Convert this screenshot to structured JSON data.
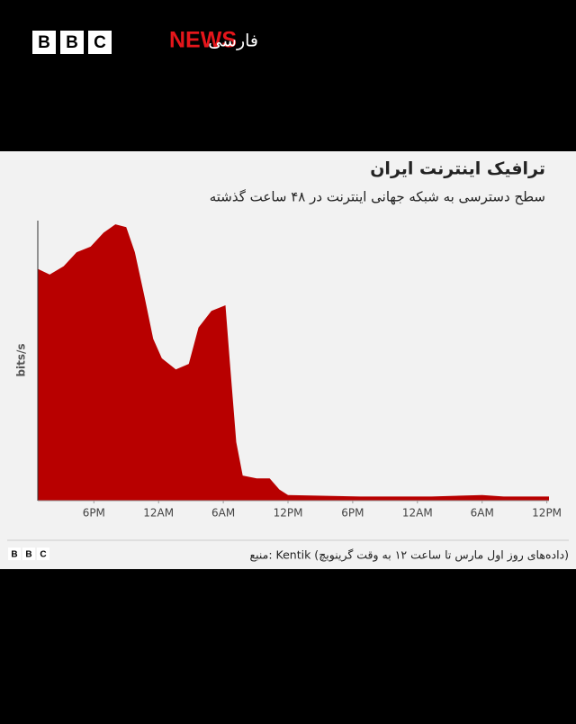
{
  "brand": {
    "letters": [
      "B",
      "B",
      "C"
    ],
    "news": "NEWS",
    "service": "فارسی"
  },
  "chart_data": {
    "type": "area",
    "title": "ترافیک اینترنت ایران",
    "subtitle": "سطح دسترسی به شبکه جهانی اینترنت در ۴۸ ساعت گذشته",
    "y_label": "bits/s",
    "color": "#b80000",
    "x": [
      0.83,
      1.9,
      3.2,
      4.4,
      5.7,
      6.9,
      8,
      9,
      9.8,
      10.7,
      11.5,
      12.3,
      13.6,
      14.8,
      15.7,
      16.9,
      18.2,
      18.6,
      19.2,
      19.8,
      21.1,
      22.3,
      23.2,
      24,
      30.7,
      37.3,
      42,
      44,
      48.2
    ],
    "values": [
      83,
      81,
      84,
      89,
      91,
      96,
      99,
      98,
      89,
      73,
      58,
      51,
      47,
      49,
      62,
      68,
      70,
      50,
      21,
      9,
      8,
      8,
      4,
      2,
      1.5,
      1.5,
      2,
      1.5,
      1.5
    ],
    "xlim": [
      0.8,
      48.2
    ],
    "ylim": [
      0,
      100
    ],
    "xticks": [
      {
        "value": 6,
        "label": "6PM"
      },
      {
        "value": 12,
        "label": "12AM"
      },
      {
        "value": 18,
        "label": "6AM"
      },
      {
        "value": 24,
        "label": "12PM"
      },
      {
        "value": 30,
        "label": "6PM"
      },
      {
        "value": 36,
        "label": "12AM"
      },
      {
        "value": 42,
        "label": "6AM"
      },
      {
        "value": 48,
        "label": "12PM"
      }
    ]
  },
  "footer": {
    "letters": [
      "B",
      "B",
      "C"
    ],
    "source": "منبع: Kentik (داده‌های روز اول مارس تا ساعت ۱۲ به وقت گرینویچ)"
  }
}
